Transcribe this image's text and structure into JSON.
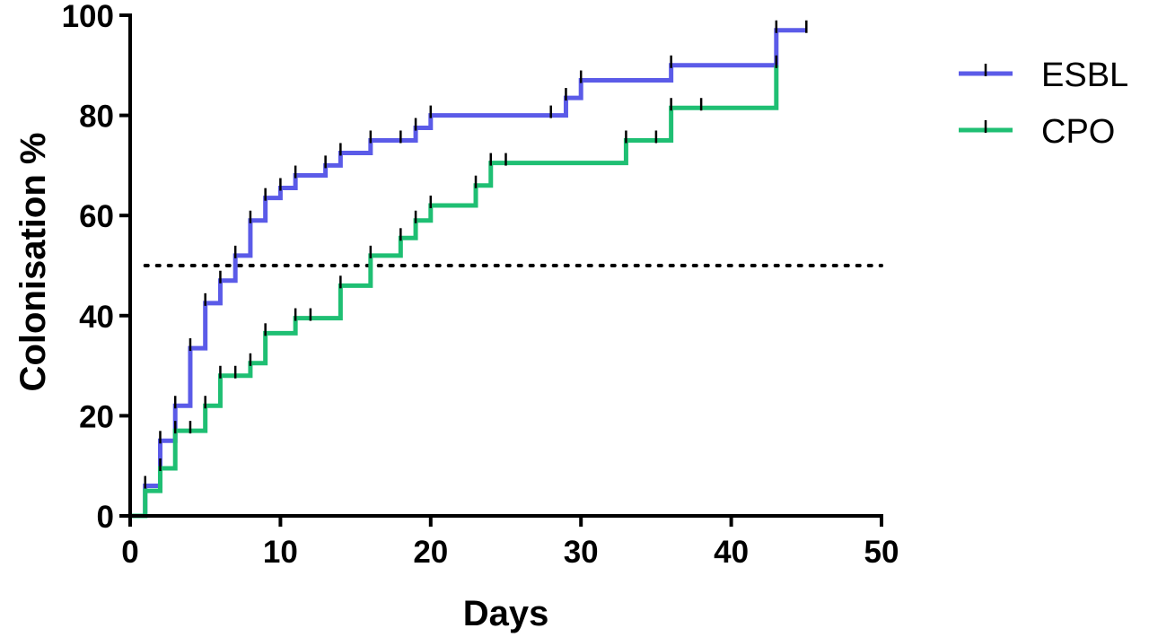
{
  "chart_data": {
    "type": "line",
    "xlabel": "Days",
    "ylabel": "Colonisation %",
    "xlim": [
      0,
      50
    ],
    "ylim": [
      0,
      100
    ],
    "xticks": [
      0,
      10,
      20,
      30,
      40,
      50
    ],
    "yticks": [
      0,
      20,
      40,
      60,
      80,
      100
    ],
    "step": true,
    "grid": false,
    "legend_position": "top-right",
    "reference_line": {
      "y": 50,
      "x_range": [
        1,
        50
      ],
      "style": "dotted"
    },
    "series": [
      {
        "name": "ESBL",
        "color": "#5b5be8",
        "x": [
          0,
          1,
          2,
          3,
          4,
          5,
          6,
          7,
          8,
          9,
          10,
          11,
          13,
          14,
          16,
          19,
          20,
          29,
          30,
          36,
          43,
          45
        ],
        "y": [
          0,
          6,
          15,
          22,
          33.5,
          42.5,
          47,
          52,
          59,
          63.5,
          65.5,
          68,
          70,
          72.5,
          75,
          77.5,
          80,
          83.5,
          87,
          90,
          97,
          97
        ],
        "censor_marks": [
          [
            1,
            6
          ],
          [
            2,
            15
          ],
          [
            3,
            22
          ],
          [
            4,
            33.5
          ],
          [
            5,
            42.5
          ],
          [
            6,
            47
          ],
          [
            7,
            52
          ],
          [
            8,
            59
          ],
          [
            9,
            63.5
          ],
          [
            10,
            65.5
          ],
          [
            11,
            68
          ],
          [
            13,
            70
          ],
          [
            14,
            72.5
          ],
          [
            16,
            75
          ],
          [
            18,
            75
          ],
          [
            19,
            77.5
          ],
          [
            20,
            80
          ],
          [
            28,
            80
          ],
          [
            29,
            83.5
          ],
          [
            30,
            87
          ],
          [
            36,
            90
          ],
          [
            43,
            97
          ],
          [
            45,
            97
          ]
        ]
      },
      {
        "name": "CPO",
        "color": "#1fbf73",
        "x": [
          0,
          1,
          2,
          3,
          5,
          6,
          8,
          9,
          11,
          14,
          16,
          18,
          19,
          20,
          23,
          24,
          33,
          36,
          43
        ],
        "y": [
          0,
          5,
          9.5,
          17,
          22,
          28,
          30.5,
          36.5,
          39.5,
          46,
          52,
          55.5,
          59,
          62,
          66,
          70.5,
          75,
          81.5,
          90
        ],
        "censor_marks": [
          [
            2,
            9.5
          ],
          [
            3,
            17
          ],
          [
            4,
            17
          ],
          [
            5,
            22
          ],
          [
            6,
            28
          ],
          [
            7,
            28
          ],
          [
            8,
            30.5
          ],
          [
            9,
            36.5
          ],
          [
            11,
            39.5
          ],
          [
            12,
            39.5
          ],
          [
            14,
            46
          ],
          [
            16,
            52
          ],
          [
            18,
            55.5
          ],
          [
            19,
            59
          ],
          [
            20,
            62
          ],
          [
            23,
            66
          ],
          [
            24,
            70.5
          ],
          [
            25,
            70.5
          ],
          [
            33,
            75
          ],
          [
            35,
            75
          ],
          [
            36,
            81.5
          ],
          [
            38,
            81.5
          ],
          [
            43,
            90
          ]
        ]
      }
    ]
  }
}
